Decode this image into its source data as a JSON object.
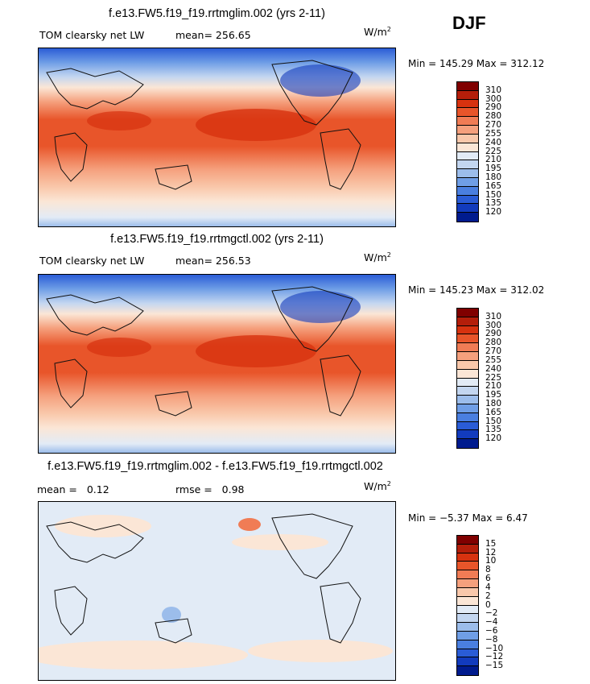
{
  "season": "DJF",
  "units": "W/m",
  "units_exp": "2",
  "panels": [
    {
      "title": "f.e13.FW5.f19_f19.rrtmglim.002 (yrs 2-11)",
      "variable": "TOM clearsky net LW",
      "mean_label": "mean=",
      "mean_value": "256.65",
      "minmax": "Min = 145.29 Max = 312.12",
      "min": 145.29,
      "max": 312.12
    },
    {
      "title": "f.e13.FW5.f19_f19.rrtmgctl.002 (yrs 2-11)",
      "variable": "TOM clearsky net LW",
      "mean_label": "mean=",
      "mean_value": "256.53",
      "minmax": "Min = 145.23 Max = 312.02",
      "min": 145.23,
      "max": 312.02
    },
    {
      "title": "f.e13.FW5.f19_f19.rrtmglim.002 - f.e13.FW5.f19_f19.rrtmgctl.002",
      "mean_label": "mean =",
      "mean_value": "0.12",
      "rmse_label": "rmse =",
      "rmse_value": "0.98",
      "minmax": "Min =  −5.37 Max =   6.47",
      "min": -5.37,
      "max": 6.47
    }
  ],
  "colorbar_abs": {
    "colors": [
      "#800000",
      "#b41e0a",
      "#d7320f",
      "#e8552a",
      "#f07c55",
      "#f5a07d",
      "#f9c8ab",
      "#fbe6d6",
      "#e2ebf6",
      "#c3d6f0",
      "#9cbdeb",
      "#6f9ee6",
      "#4a7fe0",
      "#2a5cd6",
      "#123bbd",
      "#001b8e"
    ],
    "labels": [
      "310",
      "300",
      "290",
      "280",
      "270",
      "255",
      "240",
      "225",
      "210",
      "195",
      "180",
      "165",
      "150",
      "135",
      "120"
    ]
  },
  "colorbar_diff": {
    "colors": [
      "#800000",
      "#b41e0a",
      "#d7320f",
      "#e8552a",
      "#f07c55",
      "#f5a07d",
      "#f9c8ab",
      "#fbe6d6",
      "#e2ebf6",
      "#c3d6f0",
      "#9cbdeb",
      "#6f9ee6",
      "#4a7fe0",
      "#2a5cd6",
      "#123bbd",
      "#001b8e"
    ],
    "labels": [
      "15",
      "12",
      "10",
      "8",
      "6",
      "4",
      "2",
      "0",
      "−2",
      "−4",
      "−6",
      "−8",
      "−10",
      "−12",
      "−15"
    ]
  }
}
